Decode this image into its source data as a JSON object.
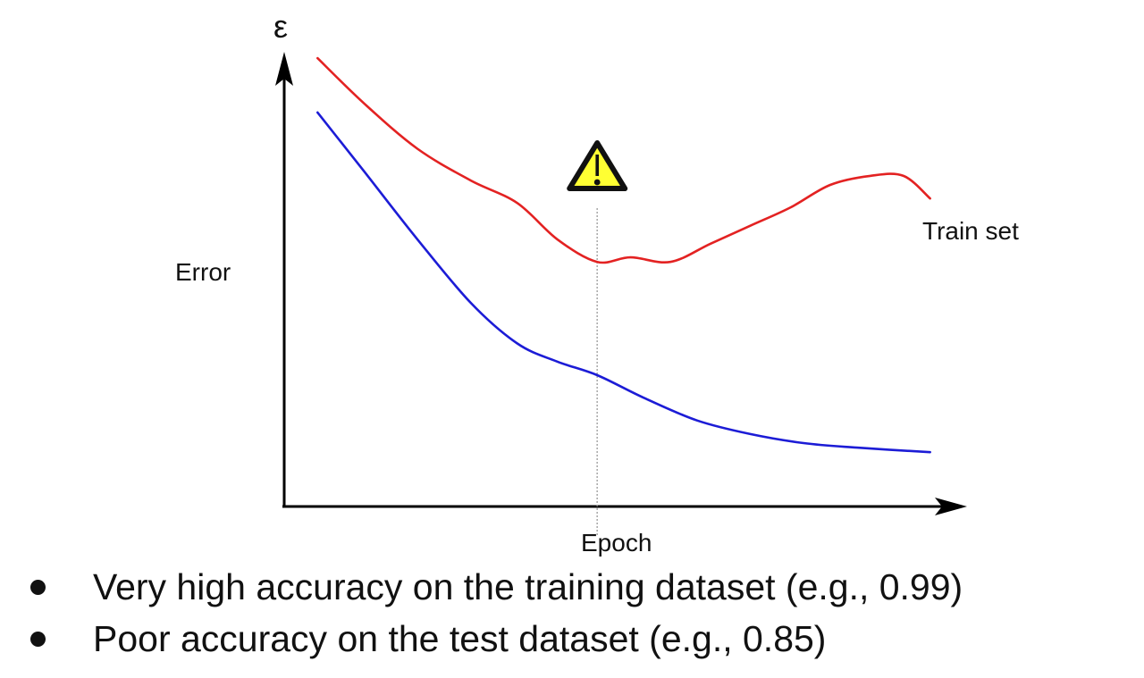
{
  "chart_data": {
    "type": "line",
    "x_label": "Epoch",
    "y_label": "Error",
    "y_symbol": "ε",
    "xlim": [
      0,
      10
    ],
    "ylim": [
      0,
      10
    ],
    "grid": false,
    "series": [
      {
        "name": "Train set",
        "color": "#e32222",
        "x": [
          0.5,
          1.2,
          2.0,
          2.8,
          3.5,
          4.1,
          4.7,
          5.2,
          5.8,
          6.4,
          7.0,
          7.6,
          8.2,
          8.8,
          9.3,
          9.7
        ],
        "y": [
          9.9,
          8.9,
          7.9,
          7.2,
          6.7,
          5.9,
          5.4,
          5.5,
          5.4,
          5.8,
          6.2,
          6.6,
          7.1,
          7.3,
          7.3,
          6.8
        ]
      },
      {
        "color": "#1c1cd6",
        "x": [
          0.5,
          1.2,
          2.0,
          2.8,
          3.5,
          4.1,
          4.7,
          5.4,
          6.2,
          7.0,
          7.8,
          8.6,
          9.7
        ],
        "y": [
          8.7,
          7.4,
          5.9,
          4.5,
          3.6,
          3.2,
          2.9,
          2.4,
          1.9,
          1.6,
          1.4,
          1.3,
          1.2
        ]
      }
    ],
    "annotations": [
      {
        "type": "vline",
        "x": 4.7
      },
      {
        "type": "warning-marker",
        "x": 4.7,
        "icon": "warning-icon",
        "color": "#ffff33"
      }
    ]
  },
  "bullets": [
    "Very high accuracy on the training dataset (e.g., 0.99)",
    "Poor accuracy on the test dataset (e.g., 0.85)"
  ]
}
